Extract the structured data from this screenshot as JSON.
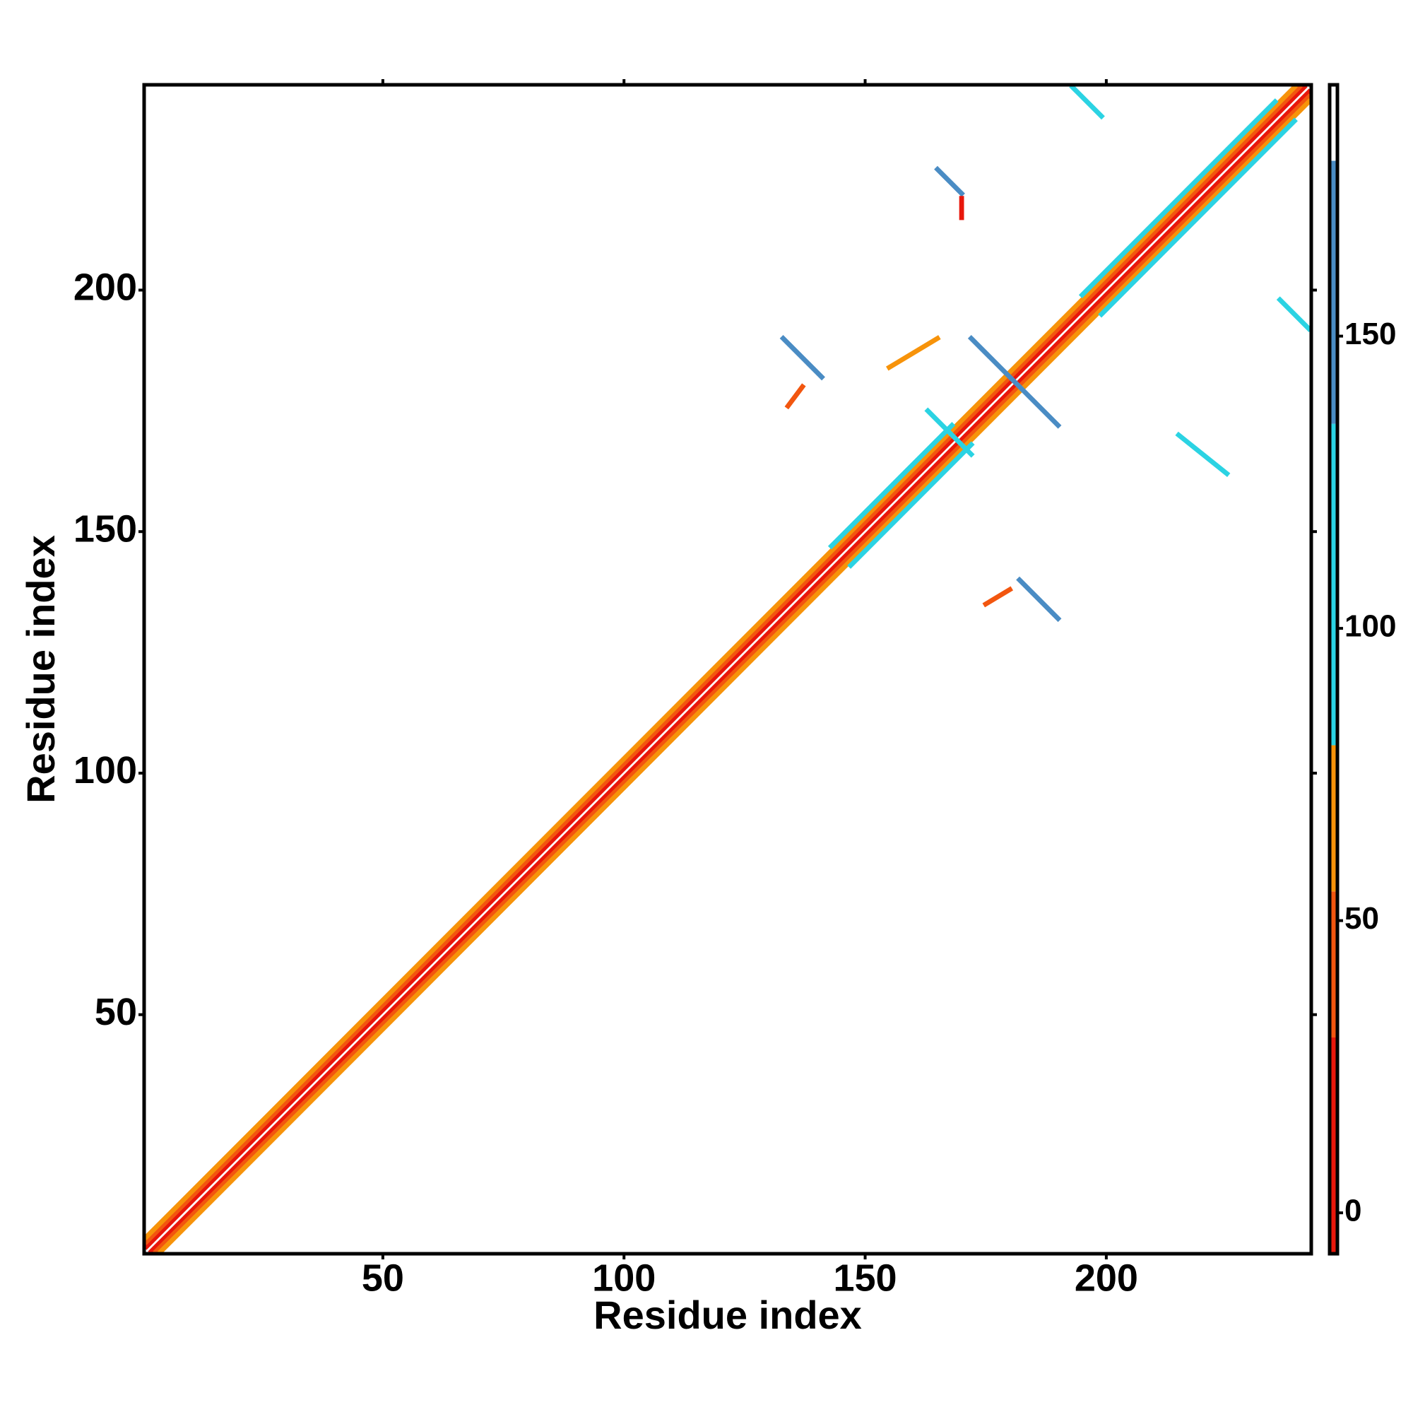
{
  "chart_data": {
    "type": "heatmap",
    "x_label": "Residue index",
    "y_label": "Residue index",
    "xlim": [
      0.5,
      242.5
    ],
    "ylim": [
      0.5,
      242.5
    ],
    "xticks": [
      50,
      100,
      150,
      200
    ],
    "yticks": [
      50,
      100,
      150,
      200
    ],
    "colorbar": {
      "lim": [
        -7,
        193
      ],
      "ticks": [
        0,
        50,
        100,
        150
      ],
      "bins": [
        {
          "from": -7,
          "to": 30,
          "color": "#e8170b"
        },
        {
          "from": 30,
          "to": 55,
          "color": "#f2560f"
        },
        {
          "from": 55,
          "to": 80,
          "color": "#f7930a"
        },
        {
          "from": 80,
          "to": 135,
          "color": "#2bd3e3"
        },
        {
          "from": 135,
          "to": 180,
          "color": "#4a8cc4"
        },
        {
          "from": 180,
          "to": 193,
          "color": "#ffffff"
        }
      ]
    },
    "strips": [
      {
        "x0": 1,
        "y0": 2,
        "x1": 241,
        "y1": 242,
        "value": 10
      },
      {
        "x0": 2,
        "y0": 1,
        "x1": 242,
        "y1": 241,
        "value": 10
      },
      {
        "x0": 1,
        "y0": 3,
        "x1": 240,
        "y1": 242,
        "value": 45
      },
      {
        "x0": 3,
        "y0": 1,
        "x1": 242,
        "y1": 240,
        "value": 45
      },
      {
        "x0": 1,
        "y0": 4,
        "x1": 239,
        "y1": 242,
        "value": 65
      },
      {
        "x0": 4,
        "y0": 1,
        "x1": 242,
        "y1": 239,
        "value": 65
      },
      {
        "x0": 143,
        "y0": 147,
        "x1": 168,
        "y1": 172,
        "value": 100
      },
      {
        "x0": 147,
        "y0": 143,
        "x1": 172,
        "y1": 168,
        "value": 100
      },
      {
        "x0": 195,
        "y0": 199,
        "x1": 235,
        "y1": 239,
        "value": 100
      },
      {
        "x0": 199,
        "y0": 195,
        "x1": 239,
        "y1": 235,
        "value": 100
      },
      {
        "x0": 172,
        "y0": 190,
        "x1": 190,
        "y1": 172,
        "value": 150
      },
      {
        "x0": 133,
        "y0": 190,
        "x1": 141,
        "y1": 182,
        "value": 150
      },
      {
        "x0": 182,
        "y0": 140,
        "x1": 190,
        "y1": 132,
        "value": 150
      },
      {
        "x0": 163,
        "y0": 175,
        "x1": 172,
        "y1": 166,
        "value": 100
      },
      {
        "x0": 193,
        "y0": 242,
        "x1": 199,
        "y1": 236,
        "value": 100
      },
      {
        "x0": 236,
        "y0": 198,
        "x1": 242,
        "y1": 192,
        "value": 100
      },
      {
        "x0": 165,
        "y0": 225,
        "x1": 170,
        "y1": 220,
        "value": 140
      },
      {
        "x0": 170,
        "y0": 219,
        "x1": 170,
        "y1": 215,
        "value": 10
      },
      {
        "x0": 215,
        "y0": 170,
        "x1": 225,
        "y1": 162,
        "value": 120
      },
      {
        "x0": 155,
        "y0": 184,
        "x1": 165,
        "y1": 190,
        "value": 60
      },
      {
        "x0": 134,
        "y0": 176,
        "x1": 137,
        "y1": 180,
        "value": 45
      },
      {
        "x0": 175,
        "y0": 135,
        "x1": 180,
        "y1": 138,
        "value": 45
      }
    ]
  }
}
